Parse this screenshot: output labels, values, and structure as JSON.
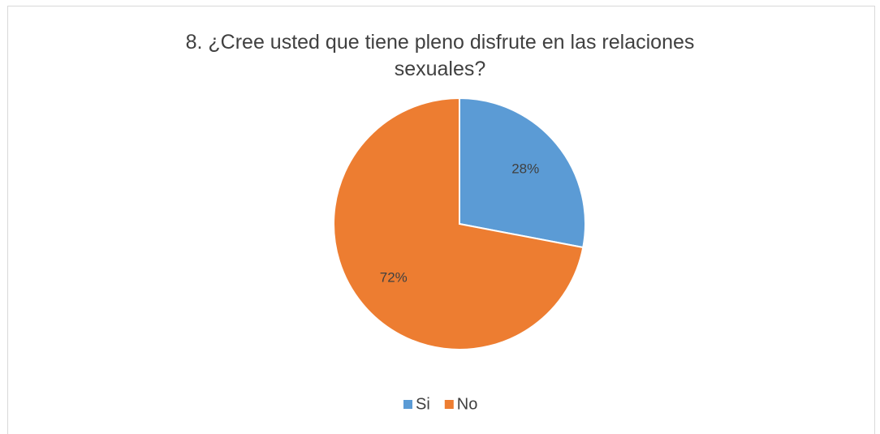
{
  "chart_data": {
    "type": "pie",
    "title": "8. ¿Cree usted que tiene pleno disfrute en las relaciones sexuales?",
    "categories": [
      "Si",
      "No"
    ],
    "values": [
      28,
      72
    ],
    "value_labels": [
      "28%",
      "72%"
    ],
    "colors": [
      "#5b9bd5",
      "#ed7d31"
    ],
    "legend": "bottom"
  }
}
